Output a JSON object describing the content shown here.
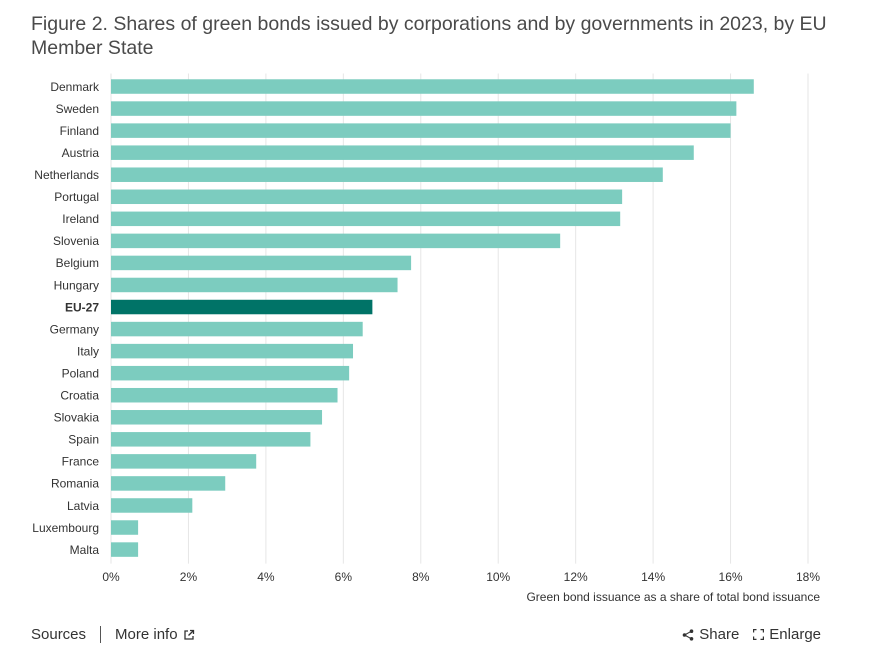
{
  "title": "Figure 2. Shares of green bonds issued by corporations and by governments in 2023, by EU Member State",
  "colors": {
    "bar": "#7cccbf",
    "highlight": "#007367",
    "grid": "#e6e6e6",
    "text": "#333333"
  },
  "chart_data": {
    "type": "bar",
    "orientation": "horizontal",
    "categories": [
      "Denmark",
      "Sweden",
      "Finland",
      "Austria",
      "Netherlands",
      "Portugal",
      "Ireland",
      "Slovenia",
      "Belgium",
      "Hungary",
      "EU-27",
      "Germany",
      "Italy",
      "Poland",
      "Croatia",
      "Slovakia",
      "Spain",
      "France",
      "Romania",
      "Latvia",
      "Luxembourg",
      "Malta"
    ],
    "values": [
      16.6,
      16.15,
      16.0,
      15.05,
      14.25,
      13.2,
      13.15,
      11.6,
      7.75,
      7.4,
      6.75,
      6.5,
      6.25,
      6.15,
      5.85,
      5.45,
      5.15,
      3.75,
      2.95,
      2.1,
      0.7,
      0.7
    ],
    "highlight": "EU-27",
    "xlim": [
      0,
      18
    ],
    "xticks": [
      "0%",
      "2%",
      "4%",
      "6%",
      "8%",
      "10%",
      "12%",
      "14%",
      "16%",
      "18%"
    ],
    "xlabel": "Green bond issuance as a share of total bond issuance",
    "ylabel": "",
    "grid": "vertical",
    "legend": "none"
  },
  "footer": {
    "sources_label": "Sources",
    "more_info_label": "More info",
    "share_label": "Share",
    "enlarge_label": "Enlarge"
  }
}
